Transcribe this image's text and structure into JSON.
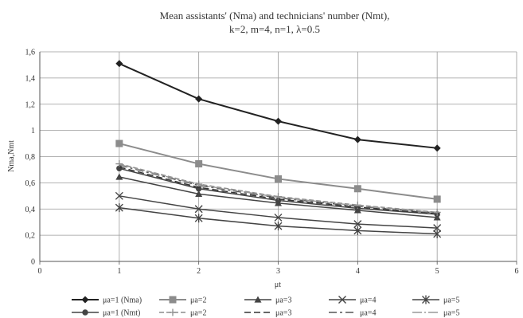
{
  "chart_data": {
    "type": "line",
    "title": "Mean assistants' (Nma) and technicians' number (Nmt),",
    "subtitle": "k=2, m=4, n=1, λ=0.5",
    "xlabel": "μt",
    "ylabel": "Nma,Nmt",
    "xlim": [
      0,
      6
    ],
    "ylim": [
      0,
      1.6
    ],
    "xticks": [
      "0",
      "1",
      "2",
      "3",
      "4",
      "5",
      "6"
    ],
    "yticks": [
      "0",
      "0,2",
      "0,4",
      "0,6",
      "0,8",
      "1",
      "1,2",
      "1,4",
      "1,6"
    ],
    "grid": true,
    "legend_position": "bottom",
    "x": [
      1,
      2,
      3,
      4,
      5
    ],
    "series": [
      {
        "name": "μa=1 (Nma)",
        "values": [
          1.51,
          1.24,
          1.07,
          0.93,
          0.865
        ],
        "color": "#222222",
        "marker": "diamond",
        "dash": "solid",
        "width": 2
      },
      {
        "name": "μa=2",
        "values": [
          0.9,
          0.745,
          0.63,
          0.555,
          0.475
        ],
        "color": "#8c8c8c",
        "marker": "square",
        "dash": "solid",
        "width": 2
      },
      {
        "name": "μa=3",
        "values": [
          0.645,
          0.515,
          0.445,
          0.39,
          0.335
        ],
        "color": "#444444",
        "marker": "triangle",
        "dash": "solid",
        "width": 1.5
      },
      {
        "name": "μa=4",
        "values": [
          0.5,
          0.4,
          0.335,
          0.285,
          0.255
        ],
        "color": "#444444",
        "marker": "x",
        "dash": "solid",
        "width": 1.5
      },
      {
        "name": "μa=5",
        "values": [
          0.41,
          0.33,
          0.27,
          0.235,
          0.21
        ],
        "color": "#444444",
        "marker": "star",
        "dash": "solid",
        "width": 1.5
      },
      {
        "name": "μa=1 (Nmt)",
        "values": [
          0.71,
          0.555,
          0.465,
          0.405,
          0.36
        ],
        "color": "#444444",
        "marker": "circle",
        "dash": "solid",
        "width": 1.5
      },
      {
        "name": "μa=2",
        "values": [
          0.745,
          0.59,
          0.495,
          0.43,
          0.375
        ],
        "color": "#8c8c8c",
        "marker": "plus",
        "dash": "6,3",
        "width": 1.5
      },
      {
        "name": "μa=3",
        "values": [
          0.72,
          0.565,
          0.475,
          0.415,
          0.365
        ],
        "color": "#333333",
        "marker": "none",
        "dash": "8,4",
        "width": 1.5
      },
      {
        "name": "μa=4",
        "values": [
          0.735,
          0.58,
          0.485,
          0.42,
          0.37
        ],
        "color": "#555555",
        "marker": "none",
        "dash": "10,4,3,4",
        "width": 1.5
      },
      {
        "name": "μa=5",
        "values": [
          0.74,
          0.585,
          0.49,
          0.425,
          0.372
        ],
        "color": "#999999",
        "marker": "none",
        "dash": "12,3,2,3",
        "width": 1.5
      }
    ]
  }
}
